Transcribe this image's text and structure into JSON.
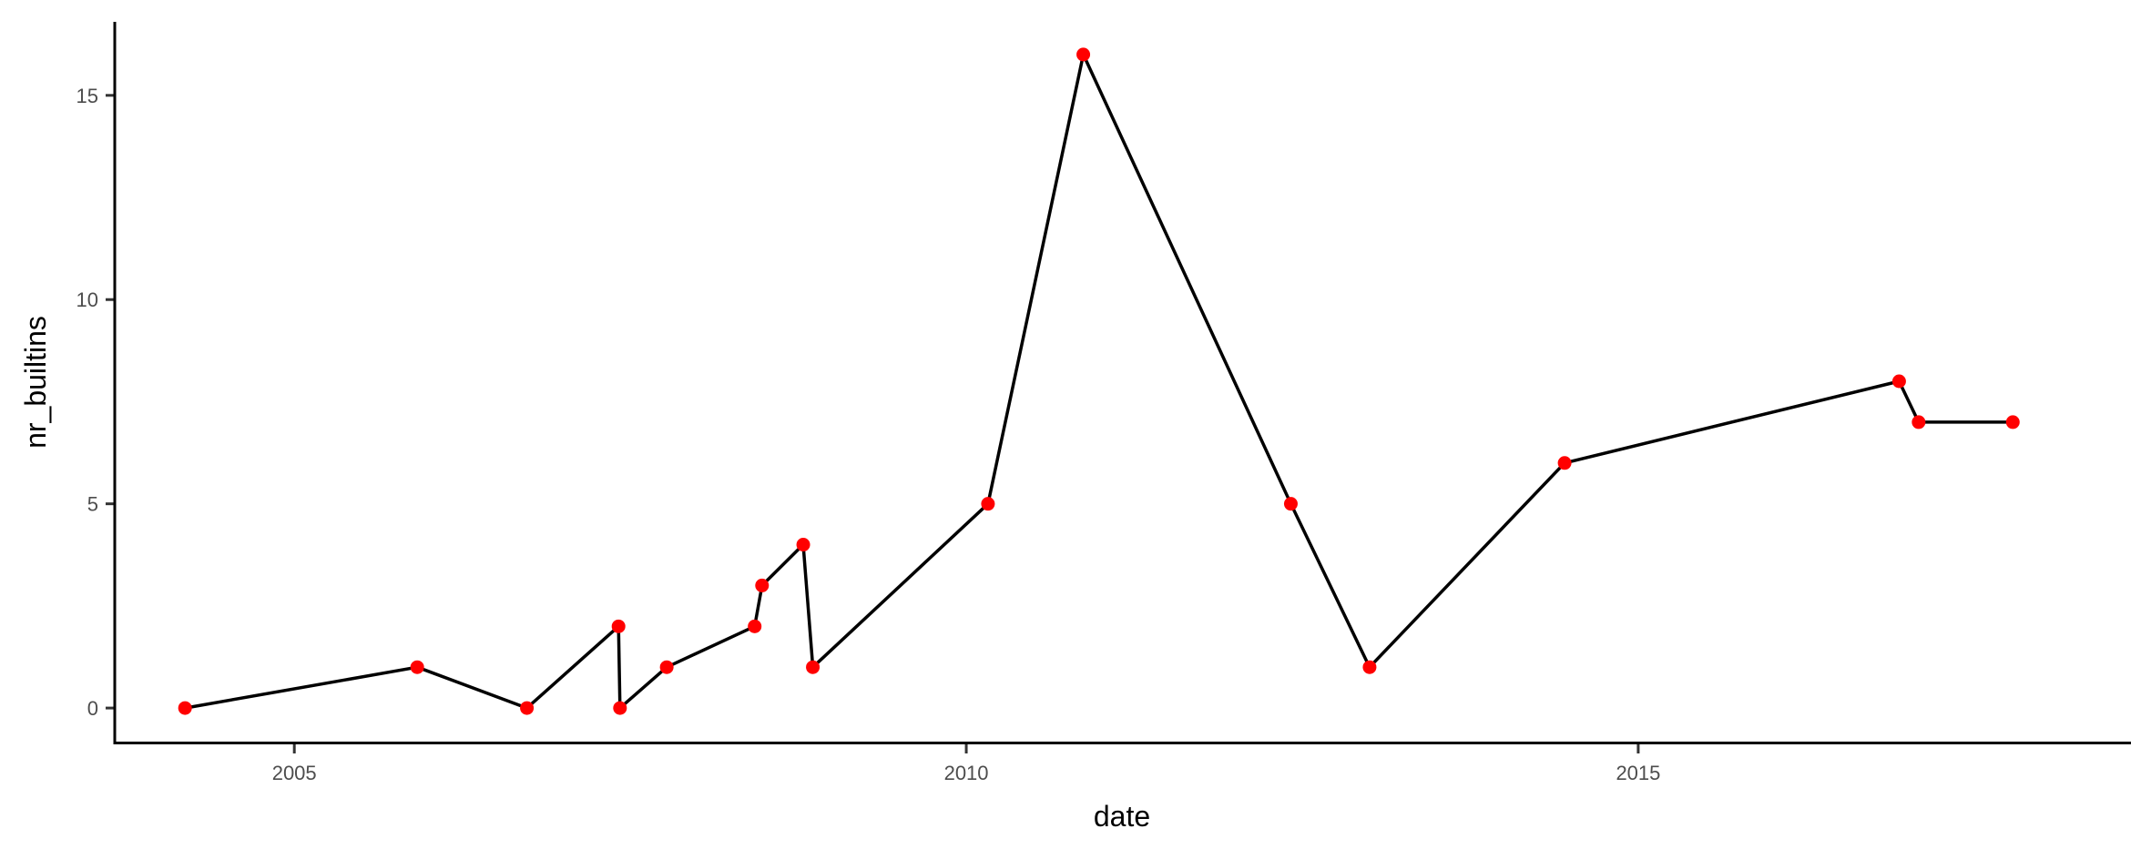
{
  "chart_data": {
    "type": "line",
    "title": "",
    "xlabel": "date",
    "ylabel": "nr_builtins",
    "x_axis_kind": "date",
    "xlim": [
      "2003-09-01",
      "2018-09-01"
    ],
    "ylim": [
      -0.8,
      16.8
    ],
    "x_ticks": [
      {
        "value": "2005-01-01",
        "label": "2005"
      },
      {
        "value": "2010-01-01",
        "label": "2010"
      },
      {
        "value": "2015-01-01",
        "label": "2015"
      }
    ],
    "y_ticks": [
      {
        "value": 0,
        "label": "0"
      },
      {
        "value": 5,
        "label": "5"
      },
      {
        "value": 10,
        "label": "10"
      },
      {
        "value": 15,
        "label": "15"
      }
    ],
    "grid": false,
    "legend": "none",
    "line_color": "#000000",
    "point_color": "#ff0000",
    "points": [
      {
        "x": "2004-03-10",
        "y": 0
      },
      {
        "x": "2005-12-01",
        "y": 1
      },
      {
        "x": "2006-09-25",
        "y": 0
      },
      {
        "x": "2007-06-01",
        "y": 2
      },
      {
        "x": "2007-06-05",
        "y": 0
      },
      {
        "x": "2007-10-10",
        "y": 1
      },
      {
        "x": "2008-06-05",
        "y": 2
      },
      {
        "x": "2008-06-25",
        "y": 3
      },
      {
        "x": "2008-10-15",
        "y": 4
      },
      {
        "x": "2008-11-10",
        "y": 1
      },
      {
        "x": "2010-03-01",
        "y": 5
      },
      {
        "x": "2010-11-15",
        "y": 16
      },
      {
        "x": "2012-06-01",
        "y": 5
      },
      {
        "x": "2013-01-01",
        "y": 1
      },
      {
        "x": "2014-06-15",
        "y": 6
      },
      {
        "x": "2016-12-10",
        "y": 8
      },
      {
        "x": "2017-02-01",
        "y": 7
      },
      {
        "x": "2017-10-15",
        "y": 7
      }
    ]
  }
}
